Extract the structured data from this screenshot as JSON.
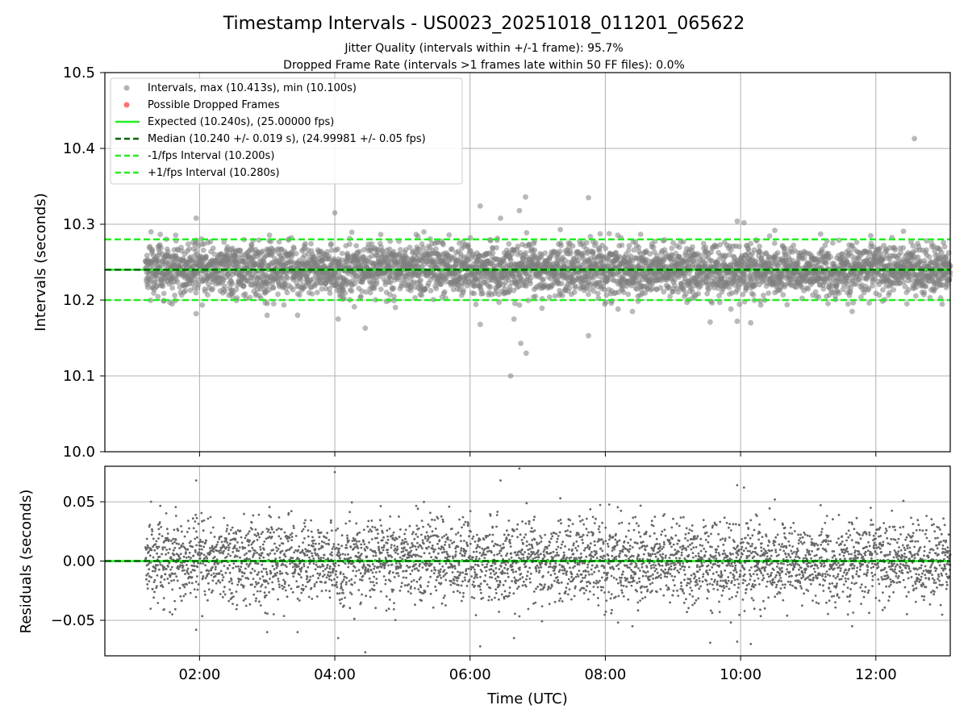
{
  "chart_data": [
    {
      "type": "scatter",
      "panel": "intervals",
      "title": "Timestamp Intervals - US0023_20251018_011201_065622",
      "subtitle_1": "Jitter Quality (intervals within +/-1 frame): 95.7%",
      "subtitle_2": "Dropped Frame Rate (intervals >1 frames late within 50 FF files): 0.0%",
      "xlabel": "",
      "ylabel": "Intervals (seconds)",
      "xlim_hours": [
        0.6,
        13.1
      ],
      "ylim": [
        10.0,
        10.5
      ],
      "yticks": [
        10.0,
        10.1,
        10.2,
        10.3,
        10.4,
        10.5
      ],
      "ytick_labels": [
        "10.0",
        "10.1",
        "10.2",
        "10.3",
        "10.4",
        "10.5"
      ],
      "grid": true,
      "legend_position": "top-left",
      "legend": [
        {
          "label": "Intervals, max (10.413s), min (10.100s)",
          "kind": "marker",
          "color": "#808080"
        },
        {
          "label": "Possible Dropped Frames",
          "kind": "marker",
          "color": "#ff6666"
        },
        {
          "label": "Expected (10.240s), (25.00000 fps)",
          "kind": "solid-line",
          "color": "#22ee22"
        },
        {
          "label": "Median (10.240 +/- 0.019 s), (24.99981 +/- 0.05 fps)",
          "kind": "dashed-line",
          "color": "#006400"
        },
        {
          "label": "-1/fps Interval (10.200s)",
          "kind": "dashed-line",
          "color": "#22ee22"
        },
        {
          "label": "+1/fps Interval (10.280s)",
          "kind": "dashed-line",
          "color": "#22ee22"
        }
      ],
      "reference_lines": {
        "expected": 10.24,
        "median": 10.24,
        "minus_one_fps": 10.2,
        "plus_one_fps": 10.28
      },
      "series": {
        "start_hour": 1.2,
        "end_hour": 13.1,
        "interval_seconds": 10.24,
        "spread_std": 0.019,
        "count": 4180,
        "outliers": [
          {
            "hour": 12.57,
            "value": 10.413
          },
          {
            "hour": 6.6,
            "value": 10.1
          },
          {
            "hour": 6.83,
            "value": 10.13
          },
          {
            "hour": 6.75,
            "value": 10.143
          },
          {
            "hour": 7.75,
            "value": 10.153
          },
          {
            "hour": 4.45,
            "value": 10.163
          },
          {
            "hour": 6.15,
            "value": 10.168
          },
          {
            "hour": 6.65,
            "value": 10.175
          },
          {
            "hour": 6.15,
            "value": 10.324
          },
          {
            "hour": 6.45,
            "value": 10.308
          },
          {
            "hour": 6.82,
            "value": 10.336
          },
          {
            "hour": 6.73,
            "value": 10.318
          },
          {
            "hour": 7.75,
            "value": 10.335
          },
          {
            "hour": 4.0,
            "value": 10.315
          },
          {
            "hour": 1.95,
            "value": 10.308
          },
          {
            "hour": 10.05,
            "value": 10.302
          },
          {
            "hour": 9.95,
            "value": 10.304
          },
          {
            "hour": 9.55,
            "value": 10.171
          },
          {
            "hour": 9.95,
            "value": 10.172
          },
          {
            "hour": 10.15,
            "value": 10.17
          },
          {
            "hour": 4.05,
            "value": 10.175
          },
          {
            "hour": 1.95,
            "value": 10.182
          },
          {
            "hour": 3.0,
            "value": 10.18
          },
          {
            "hour": 3.45,
            "value": 10.18
          },
          {
            "hour": 11.65,
            "value": 10.185
          },
          {
            "hour": 8.4,
            "value": 10.185
          }
        ]
      }
    },
    {
      "type": "scatter",
      "panel": "residuals",
      "xlabel": "Time (UTC)",
      "ylabel": "Residuals (seconds)",
      "xlim_hours": [
        0.6,
        13.1
      ],
      "ylim": [
        -0.08,
        0.08
      ],
      "yticks": [
        -0.05,
        0.0,
        0.05
      ],
      "ytick_labels": [
        "−0.05",
        "0.00",
        "0.05"
      ],
      "xticks_hours": [
        2,
        4,
        6,
        8,
        10,
        12
      ],
      "xtick_labels": [
        "02:00",
        "04:00",
        "06:00",
        "08:00",
        "10:00",
        "12:00"
      ],
      "grid": true,
      "zero_line": 0.0
    }
  ],
  "colors": {
    "points": "#808080",
    "expected": "#22ee22",
    "median": "#006400",
    "fps_bounds": "#22ee22",
    "grid": "#b0b0b0",
    "dropped": "#ff6666"
  }
}
